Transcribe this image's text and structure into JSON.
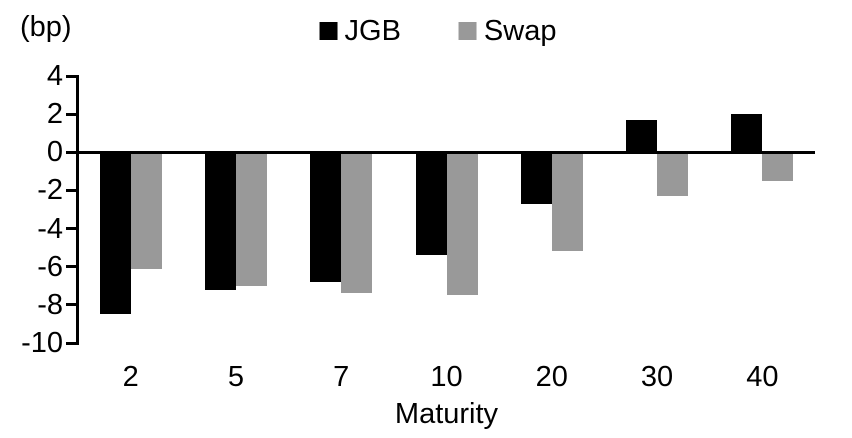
{
  "chart_data": {
    "type": "bar",
    "title": "",
    "unit_label": "(bp)",
    "xlabel": "Maturity",
    "ylabel": "",
    "categories": [
      "2",
      "5",
      "7",
      "10",
      "20",
      "30",
      "40"
    ],
    "series": [
      {
        "name": "JGB",
        "color": "#000000",
        "values": [
          -8.5,
          -7.2,
          -6.8,
          -5.4,
          -2.7,
          1.7,
          2.0
        ]
      },
      {
        "name": "Swap",
        "color": "#999999",
        "values": [
          -6.1,
          -7.0,
          -7.4,
          -7.5,
          -5.2,
          -2.3,
          -1.5
        ]
      }
    ],
    "y_ticks": [
      4,
      2,
      0,
      -2,
      -4,
      -6,
      -8,
      -10
    ],
    "ylim": [
      -10,
      4
    ],
    "grid": false,
    "legend_position": "top-center",
    "axis_color": "#000000",
    "background_color": "#ffffff"
  }
}
